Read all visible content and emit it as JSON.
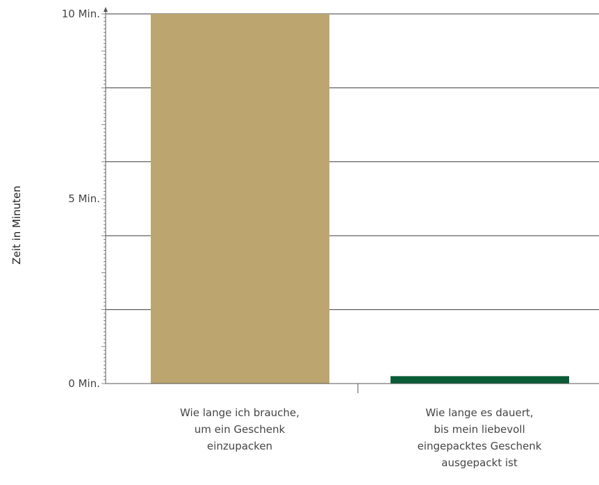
{
  "chart_data": {
    "type": "bar",
    "title": "",
    "ylabel": "Zeit in Minuten",
    "xlabel": "",
    "ylim": [
      0,
      10
    ],
    "y_ticks": [
      {
        "value": 0,
        "label": "0 Min."
      },
      {
        "value": 5,
        "label": "5 Min."
      },
      {
        "value": 10,
        "label": "10 Min."
      }
    ],
    "gridlines": [
      2,
      4,
      6,
      8,
      10
    ],
    "grid": true,
    "categories": [
      "Wie lange ich brauche, um ein Geschenk einzupacken",
      "Wie lange es dauert, bis mein liebevoll eingepacktes Geschenk ausgepackt ist"
    ],
    "category_lines": [
      [
        "Wie lange ich brauche,",
        "um ein Geschenk",
        "einzupacken"
      ],
      [
        "Wie lange es dauert,",
        "bis mein liebevoll",
        "eingepacktes Geschenk",
        "ausgepackt ist"
      ]
    ],
    "values": [
      10,
      0.2
    ],
    "colors": [
      "#bda570",
      "#0a5c36"
    ]
  }
}
